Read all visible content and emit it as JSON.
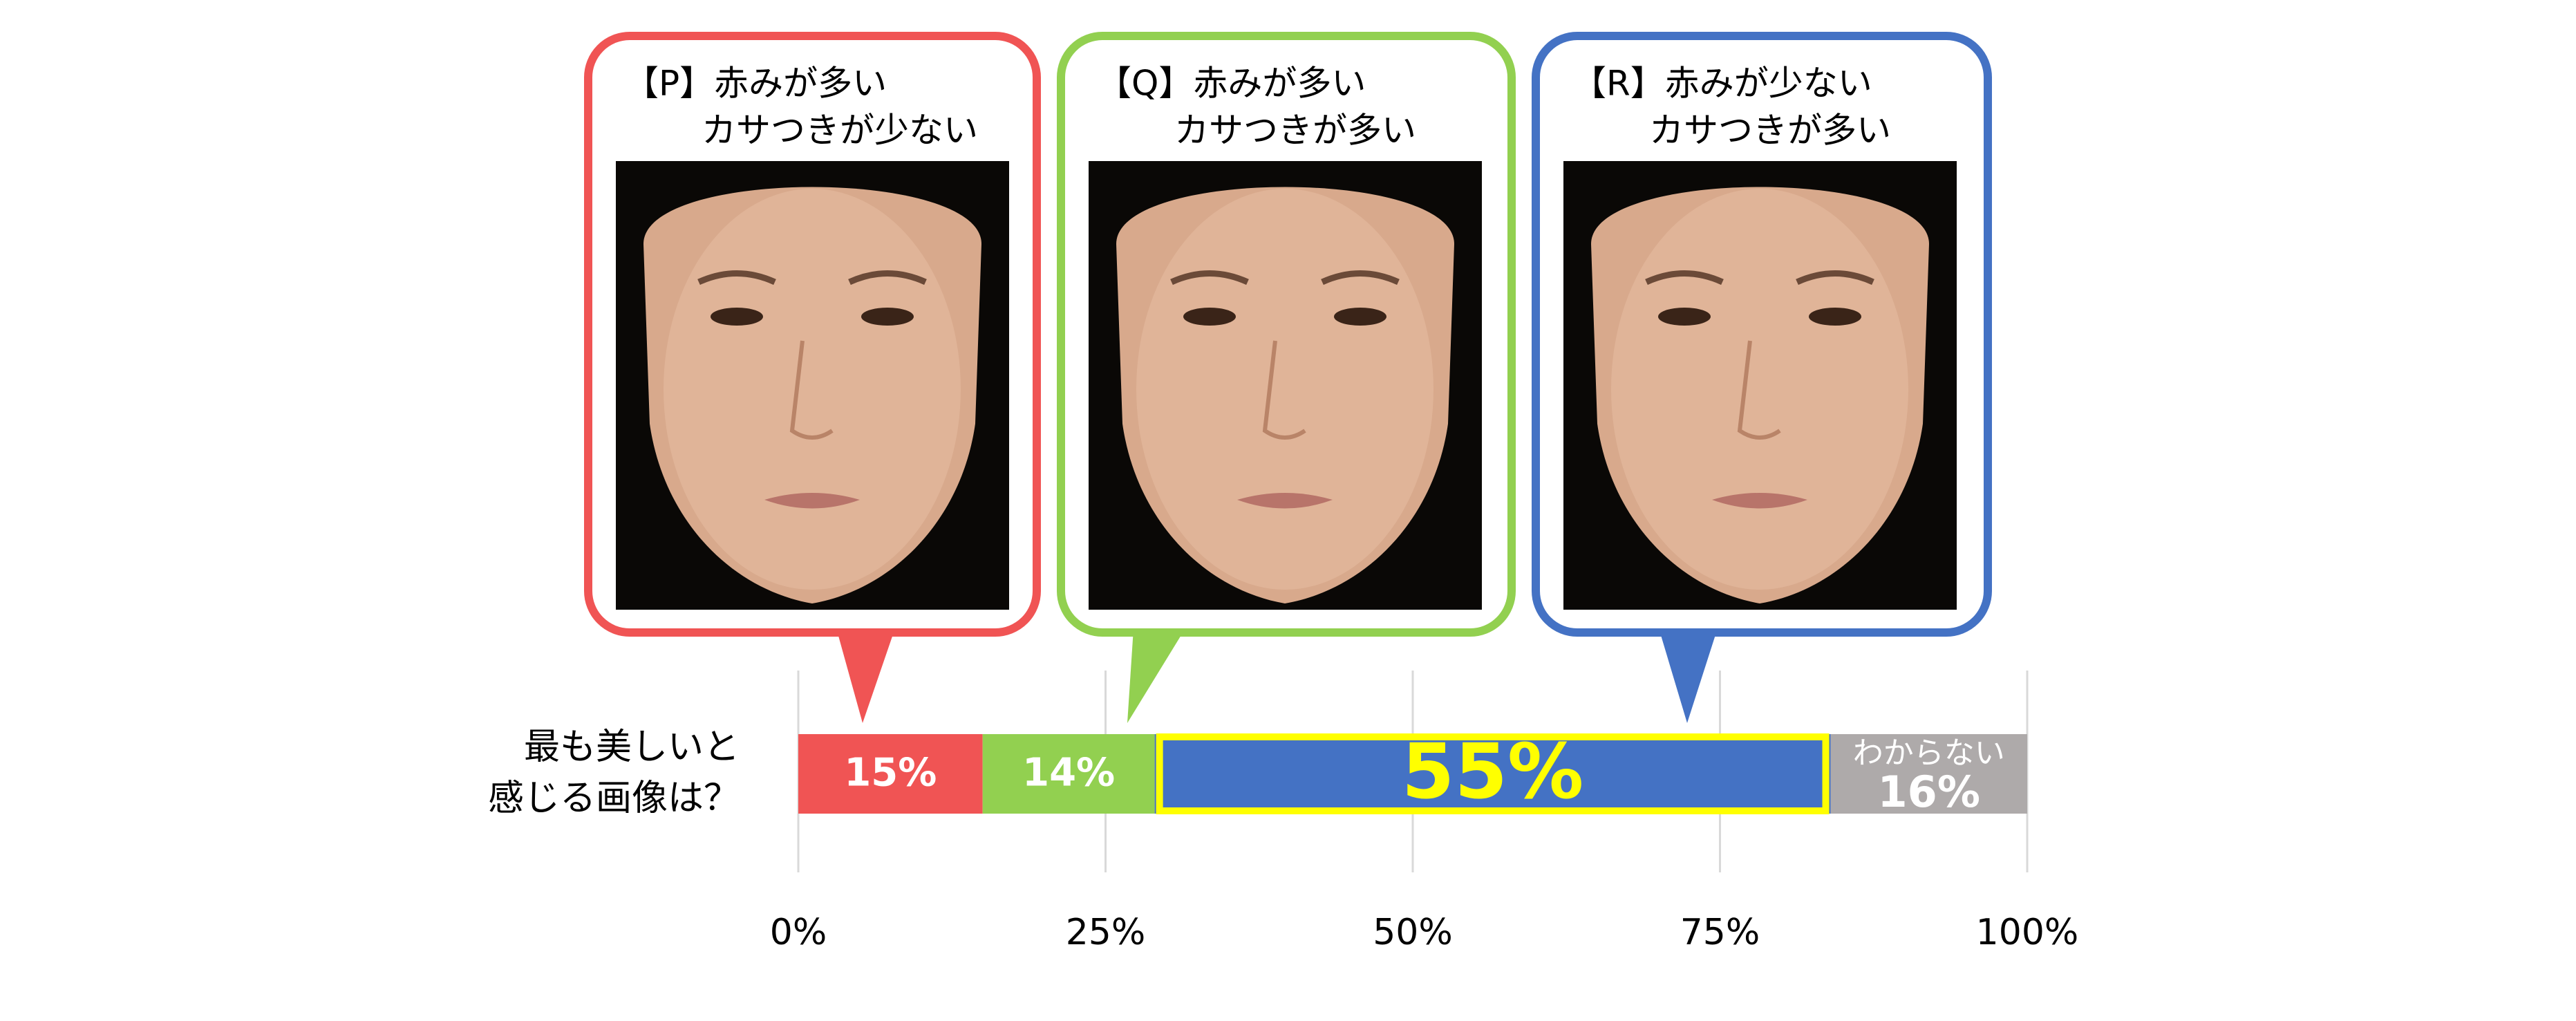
{
  "chart_data": {
    "type": "stacked-bar-horizontal",
    "categories": [
      [
        "最も美しいと",
        "感じる画像は？"
      ]
    ],
    "series": [
      {
        "name": [
          "【P】赤みが多い",
          "カサつきが少ない"
        ],
        "color": "#f05454",
        "values": [
          15
        ],
        "value_labels": [
          "15%"
        ]
      },
      {
        "name": [
          "【Q】赤みが多い",
          "カサつきが多い"
        ],
        "color": "#92d050",
        "values": [
          14
        ],
        "value_labels": [
          "14%"
        ]
      },
      {
        "name": [
          "【R】赤みが少ない",
          "カサつきが多い"
        ],
        "color": "#4472c4",
        "values": [
          55
        ],
        "value_labels": [
          "55%"
        ],
        "highlight": "#ffff00"
      },
      {
        "name": "わからない",
        "color": "#aeaaaa",
        "values": [
          16
        ],
        "value_labels": [
          "16%"
        ]
      }
    ],
    "xlim": [
      0,
      100
    ],
    "xticks": [
      {
        "value": 0,
        "label": "0%"
      },
      {
        "value": 25,
        "label": "25%"
      },
      {
        "value": 50,
        "label": "50%"
      },
      {
        "value": 75,
        "label": "75%"
      },
      {
        "value": 100,
        "label": "100%"
      }
    ],
    "grid": true
  }
}
